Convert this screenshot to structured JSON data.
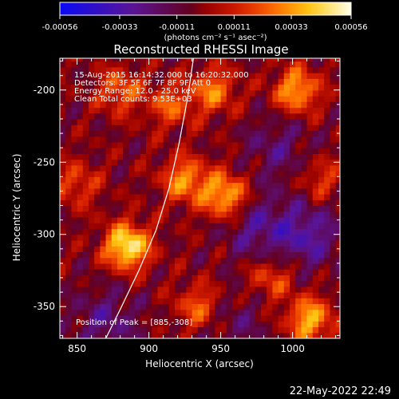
{
  "colorbar": {
    "ticks": [
      "-0.00056",
      "-0.00033",
      "-0.00011",
      "0.00011",
      "0.00033",
      "0.00056"
    ],
    "unit_label": "(photons cm⁻² s⁻¹ asec⁻²)"
  },
  "chart_data": {
    "type": "heatmap",
    "title": "Reconstructed RHESSI Image",
    "xlabel": "Heliocentric X (arcsec)",
    "ylabel": "Heliocentric Y (arcsec)",
    "xlim": [
      838,
      1033
    ],
    "ylim": [
      -372,
      -178
    ],
    "xticks": [
      850,
      900,
      950,
      1000
    ],
    "yticks": [
      -350,
      -300,
      -250,
      -200
    ],
    "zlim": [
      -0.00056,
      0.00056
    ],
    "colormap": "blue-purple-red-orange-yellow-white",
    "annotations": [
      "15-Aug-2015 16:14:32.000 to 16:20:32.000",
      "Detectors: 3F 5F 6F 7F 8F 9F Att 0",
      "Energy Range: 12.0 - 25.0 keV",
      "Clean     Total counts: 9.53E+03"
    ],
    "peak_label": "Position of Peak = [885,-308]",
    "peak": [
      885,
      -308
    ],
    "sources": [
      {
        "x": 885,
        "y": -308,
        "peak": 0.00056
      },
      {
        "x": 953,
        "y": -273,
        "peak": 0.00044
      },
      {
        "x": 925,
        "y": -262,
        "peak": 0.00036
      },
      {
        "x": 1003,
        "y": -200,
        "peak": 0.0004
      },
      {
        "x": 1012,
        "y": -359,
        "peak": 0.00042
      },
      {
        "x": 945,
        "y": -200,
        "peak": 0.00032
      },
      {
        "x": 915,
        "y": -210,
        "peak": 0.00026
      },
      {
        "x": 985,
        "y": -330,
        "peak": 0.00024
      },
      {
        "x": 935,
        "y": -350,
        "peak": 0.00028
      },
      {
        "x": 880,
        "y": -200,
        "peak": 0.00028
      },
      {
        "x": 850,
        "y": -265,
        "peak": 0.00022
      },
      {
        "x": 1020,
        "y": -262,
        "peak": 0.0002
      }
    ],
    "negative_regions": [
      {
        "x": 1010,
        "y": -300,
        "depth": -0.00025
      },
      {
        "x": 975,
        "y": -295,
        "depth": -0.0002
      },
      {
        "x": 990,
        "y": -240,
        "depth": -0.00015
      },
      {
        "x": 870,
        "y": -360,
        "depth": -0.00018
      },
      {
        "x": 960,
        "y": -360,
        "depth": -0.00012
      }
    ],
    "limb_curve": [
      [
        870,
        -372
      ],
      [
        880,
        -352
      ],
      [
        893,
        -325
      ],
      [
        905,
        -297
      ],
      [
        914,
        -268
      ],
      [
        921,
        -237
      ],
      [
        927,
        -205
      ],
      [
        931,
        -178
      ]
    ]
  },
  "footer": {
    "date": "22-May-2022 22:49"
  }
}
